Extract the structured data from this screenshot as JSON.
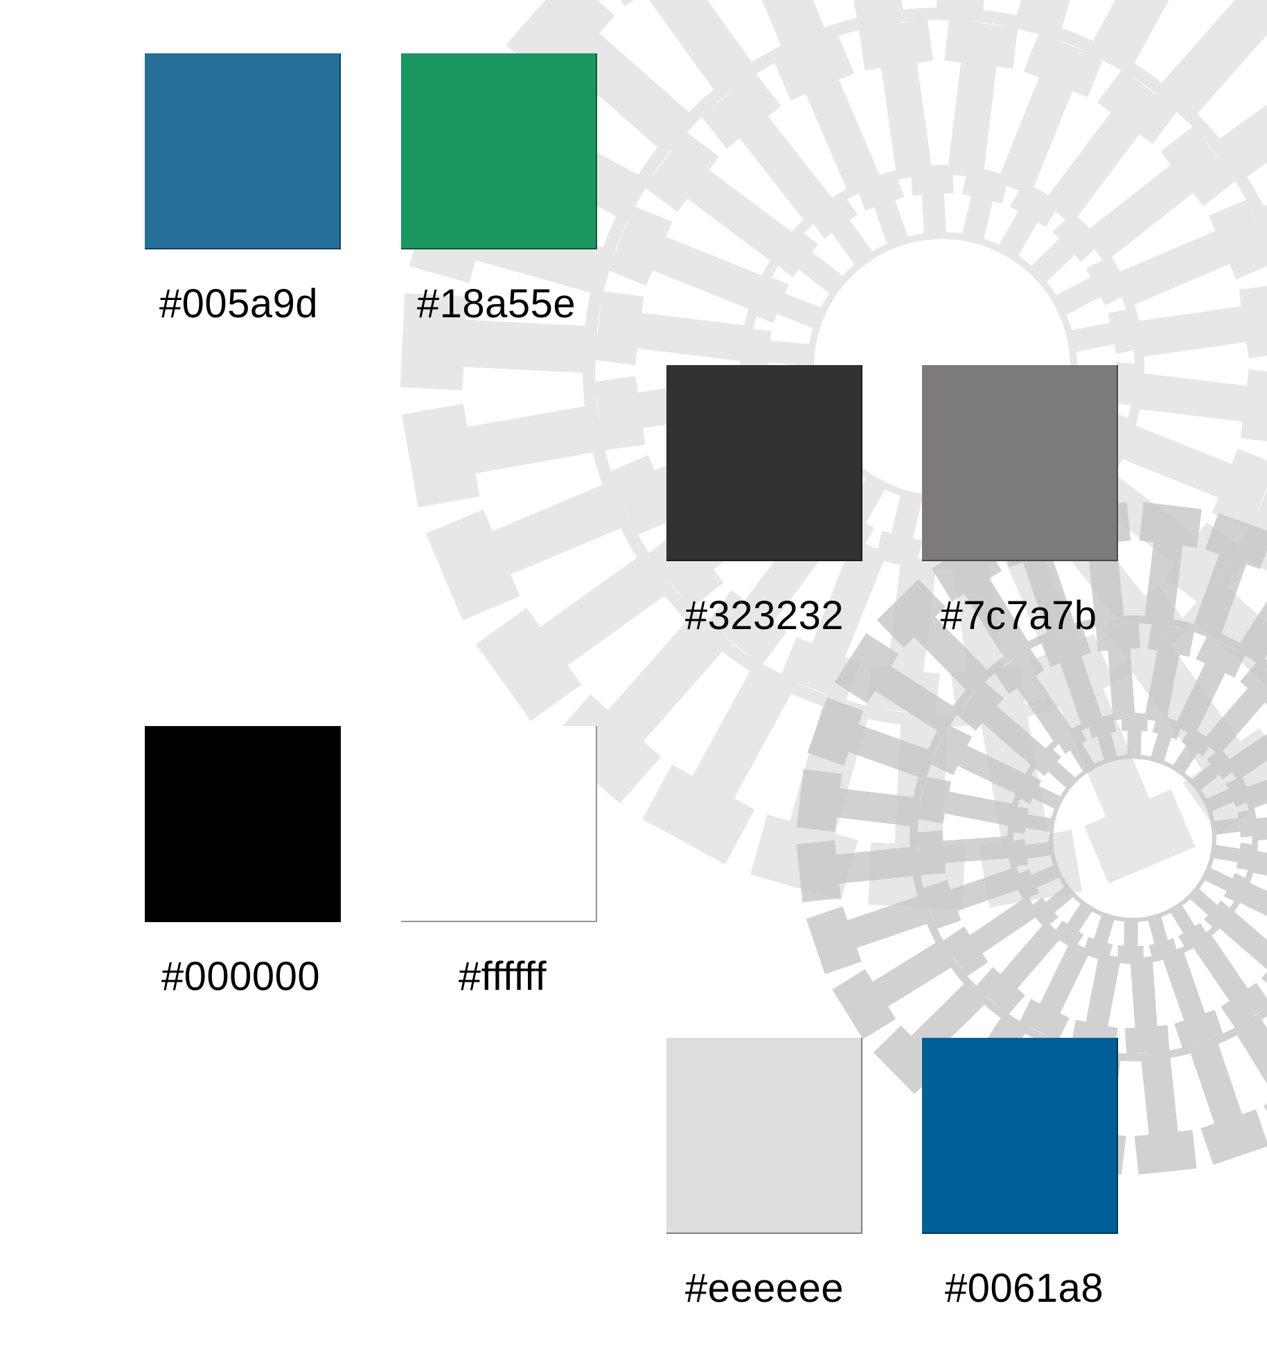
{
  "swatches": [
    {
      "id": "swatch-005a9d",
      "label": "#005a9d",
      "fill": "#236f98"
    },
    {
      "id": "swatch-18a55e",
      "label": "#18a55e",
      "fill": "#1a9660"
    },
    {
      "id": "swatch-323232",
      "label": "#323232",
      "fill": "#323232"
    },
    {
      "id": "swatch-7c7a7b",
      "label": "#7c7a7b",
      "fill": "#7c7a7b"
    },
    {
      "id": "swatch-000000",
      "label": "#000000",
      "fill": "#000000"
    },
    {
      "id": "swatch-ffffff",
      "label": "#ffffff",
      "fill": "#ffffff"
    },
    {
      "id": "swatch-eeeeee",
      "label": "#eeeeee",
      "fill": "#dddddd"
    },
    {
      "id": "swatch-0061a8",
      "label": "#0061a8",
      "fill": "#005f96"
    }
  ],
  "background_pattern": {
    "name": "concentric-gear-ring-pattern",
    "color_light": "#e6e6e6",
    "color_dark": "#c9c9c9"
  }
}
